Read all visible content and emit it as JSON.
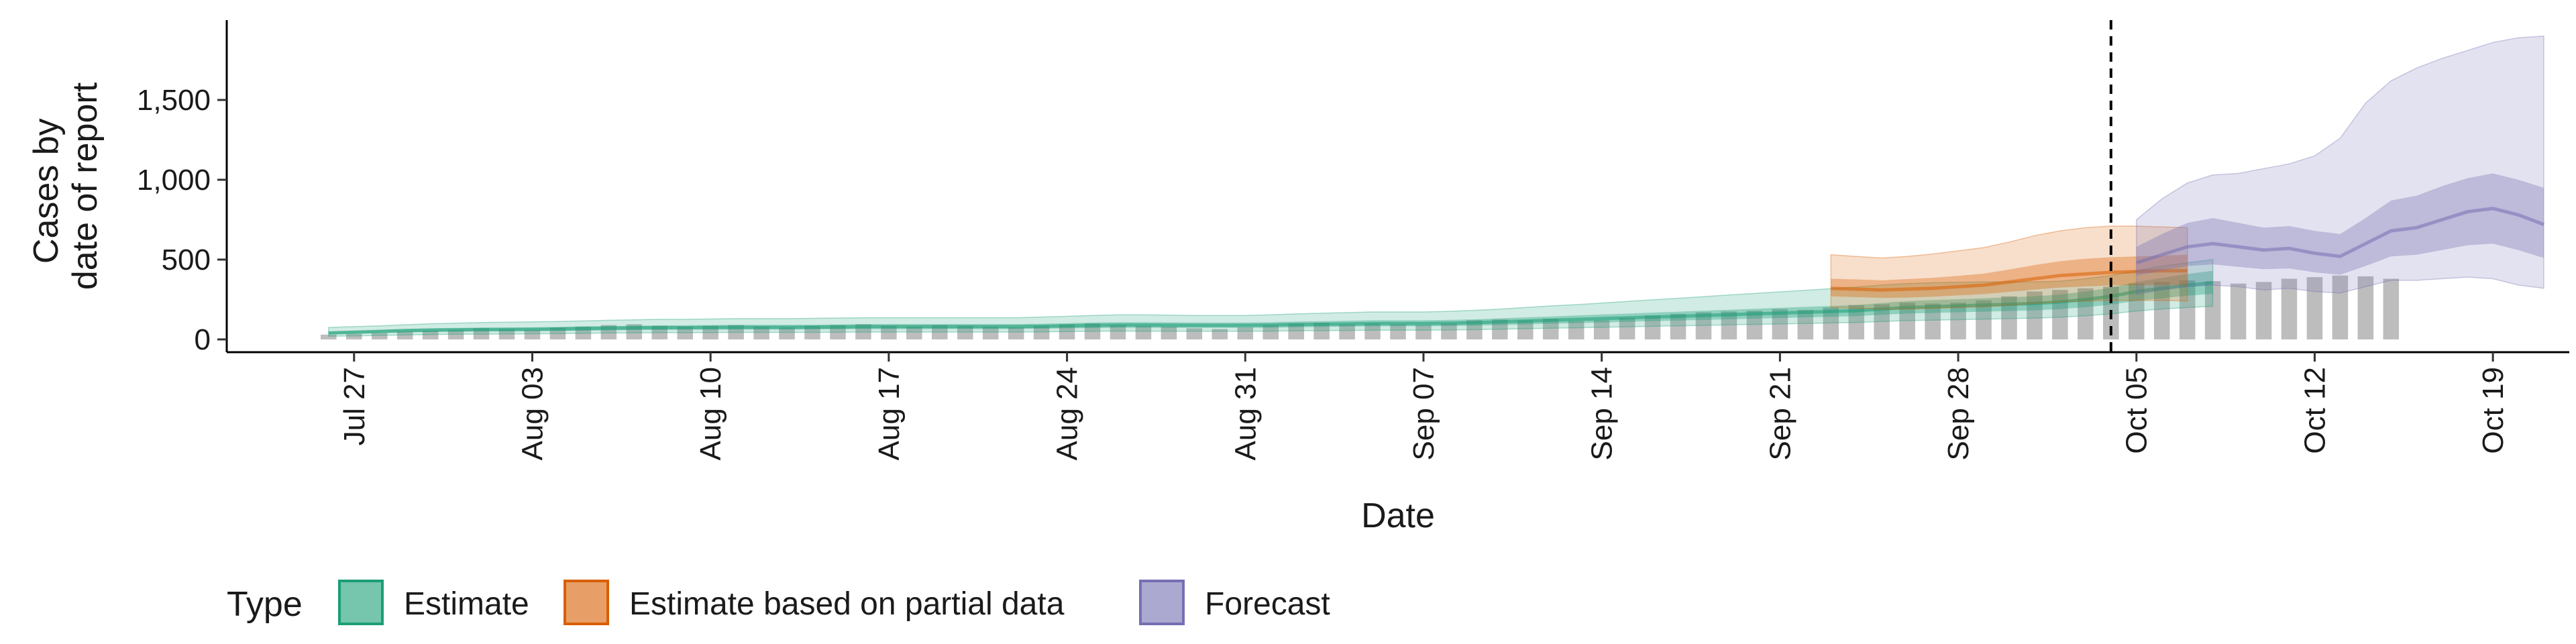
{
  "chart_data": {
    "type": "area",
    "title": "",
    "xlabel": "Date",
    "ylabel_lines": [
      "Cases by",
      "date of report"
    ],
    "x_range": [
      "2020-07-22",
      "2020-10-22"
    ],
    "ylim": [
      -80,
      2000
    ],
    "y_ticks": [
      0,
      500,
      1000,
      1500
    ],
    "y_tick_labels": [
      "0",
      "500",
      "1,000",
      "1,500"
    ],
    "x_ticks": [
      "2020-07-27",
      "2020-08-03",
      "2020-08-10",
      "2020-08-17",
      "2020-08-24",
      "2020-08-31",
      "2020-09-07",
      "2020-09-14",
      "2020-09-21",
      "2020-09-28",
      "2020-10-05",
      "2020-10-12",
      "2020-10-19"
    ],
    "x_tick_labels": [
      "Jul 27",
      "Aug 03",
      "Aug 10",
      "Aug 17",
      "Aug 24",
      "Aug 31",
      "Sep 07",
      "Sep 14",
      "Sep 21",
      "Sep 28",
      "Oct 05",
      "Oct 12",
      "Oct 19"
    ],
    "vline_date": "2020-10-04",
    "grid": false,
    "legend_position": "bottom",
    "legend_title": "Type",
    "reported_cases": {
      "start_date": "2020-07-26",
      "values": [
        30,
        35,
        40,
        50,
        55,
        60,
        70,
        65,
        60,
        75,
        80,
        90,
        95,
        85,
        80,
        85,
        90,
        80,
        75,
        85,
        90,
        95,
        85,
        80,
        90,
        85,
        80,
        75,
        85,
        95,
        100,
        90,
        85,
        80,
        70,
        65,
        75,
        90,
        100,
        105,
        95,
        100,
        95,
        90,
        100,
        120,
        125,
        120,
        130,
        115,
        120,
        135,
        150,
        160,
        170,
        175,
        180,
        190,
        185,
        200,
        215,
        220,
        230,
        225,
        230,
        245,
        270,
        300,
        310,
        320,
        330,
        350,
        360,
        370,
        365,
        350,
        360,
        380,
        390,
        400,
        395,
        380
      ]
    },
    "series": [
      {
        "name": "Estimate",
        "color": "#1b9e77",
        "start_date": "2020-07-26",
        "median": [
          40,
          45,
          50,
          55,
          58,
          60,
          62,
          62,
          63,
          65,
          68,
          70,
          72,
          74,
          74,
          75,
          76,
          76,
          76,
          77,
          78,
          80,
          80,
          80,
          80,
          80,
          80,
          80,
          82,
          85,
          88,
          90,
          90,
          89,
          88,
          88,
          88,
          90,
          93,
          95,
          97,
          100,
          100,
          100,
          102,
          105,
          110,
          115,
          120,
          125,
          130,
          135,
          140,
          145,
          150,
          155,
          160,
          165,
          170,
          175,
          180,
          190,
          200,
          205,
          210,
          215,
          220,
          225,
          235,
          250,
          270,
          300,
          320,
          340,
          355
        ],
        "inner_lower": [
          32,
          36,
          40,
          44,
          47,
          49,
          50,
          51,
          52,
          53,
          55,
          57,
          59,
          60,
          61,
          61,
          62,
          62,
          62,
          63,
          64,
          65,
          65,
          65,
          65,
          65,
          65,
          65,
          67,
          69,
          71,
          73,
          73,
          72,
          72,
          72,
          72,
          73,
          76,
          78,
          80,
          82,
          82,
          82,
          84,
          86,
          90,
          94,
          98,
          102,
          106,
          110,
          114,
          118,
          122,
          126,
          130,
          134,
          138,
          142,
          146,
          154,
          162,
          166,
          170,
          174,
          178,
          182,
          190,
          202,
          218,
          242,
          258,
          274,
          285
        ],
        "inner_upper": [
          49,
          55,
          60,
          66,
          70,
          72,
          74,
          75,
          76,
          78,
          82,
          84,
          86,
          88,
          88,
          90,
          91,
          91,
          91,
          92,
          94,
          96,
          96,
          96,
          96,
          96,
          96,
          96,
          98,
          102,
          106,
          108,
          108,
          107,
          106,
          106,
          106,
          108,
          112,
          114,
          117,
          120,
          120,
          120,
          122,
          126,
          132,
          138,
          144,
          150,
          156,
          162,
          168,
          174,
          180,
          186,
          192,
          198,
          204,
          210,
          216,
          228,
          240,
          246,
          252,
          258,
          264,
          270,
          282,
          300,
          324,
          360,
          385,
          410,
          430
        ],
        "outer_lower": [
          20,
          22,
          25,
          28,
          30,
          32,
          33,
          34,
          35,
          36,
          38,
          40,
          41,
          42,
          42,
          43,
          44,
          44,
          44,
          44,
          45,
          46,
          46,
          46,
          46,
          46,
          46,
          46,
          47,
          49,
          51,
          52,
          52,
          51,
          51,
          51,
          51,
          52,
          54,
          55,
          56,
          58,
          58,
          58,
          59,
          61,
          64,
          67,
          70,
          73,
          76,
          79,
          82,
          85,
          88,
          91,
          94,
          97,
          100,
          103,
          106,
          112,
          118,
          121,
          124,
          127,
          130,
          133,
          139,
          148,
          160,
          178,
          190,
          200,
          208
        ],
        "outer_upper": [
          75,
          80,
          85,
          92,
          98,
          102,
          106,
          108,
          110,
          112,
          116,
          120,
          123,
          126,
          126,
          128,
          130,
          130,
          130,
          132,
          134,
          136,
          136,
          136,
          136,
          136,
          136,
          136,
          140,
          145,
          150,
          154,
          154,
          152,
          150,
          150,
          150,
          154,
          160,
          164,
          168,
          172,
          172,
          172,
          176,
          182,
          190,
          200,
          210,
          218,
          228,
          238,
          248,
          258,
          268,
          278,
          288,
          298,
          308,
          318,
          328,
          340,
          350,
          355,
          358,
          360,
          360,
          360,
          365,
          380,
          400,
          430,
          460,
          480,
          500
        ]
      },
      {
        "name": "Estimate based on partial data",
        "color": "#d95f02",
        "start_date": "2020-09-23",
        "median": [
          320,
          315,
          310,
          315,
          320,
          330,
          340,
          360,
          380,
          400,
          410,
          420,
          425,
          430,
          430
        ],
        "inner_lower": [
          270,
          265,
          260,
          262,
          268,
          276,
          284,
          298,
          312,
          325,
          332,
          338,
          340,
          342,
          340
        ],
        "inner_upper": [
          380,
          376,
          370,
          378,
          386,
          398,
          412,
          438,
          466,
          490,
          505,
          515,
          520,
          525,
          530
        ],
        "outer_lower": [
          200,
          195,
          190,
          190,
          195,
          200,
          205,
          215,
          225,
          235,
          240,
          245,
          245,
          245,
          240
        ],
        "outer_upper": [
          530,
          520,
          510,
          520,
          535,
          555,
          575,
          610,
          650,
          680,
          700,
          710,
          710,
          705,
          700
        ]
      },
      {
        "name": "Forecast",
        "color": "#7570b3",
        "start_date": "2020-10-05",
        "median": [
          480,
          530,
          580,
          600,
          580,
          560,
          570,
          540,
          520,
          600,
          680,
          700,
          750,
          800,
          820,
          780,
          720
        ],
        "inner_lower": [
          400,
          430,
          460,
          470,
          455,
          440,
          445,
          420,
          405,
          460,
          520,
          530,
          560,
          590,
          600,
          560,
          510
        ],
        "inner_upper": [
          580,
          660,
          730,
          760,
          730,
          700,
          710,
          680,
          660,
          760,
          870,
          900,
          960,
          1010,
          1040,
          1000,
          950
        ],
        "outer_lower": [
          280,
          310,
          330,
          340,
          330,
          310,
          320,
          300,
          290,
          330,
          370,
          370,
          380,
          390,
          380,
          340,
          320
        ],
        "outer_upper": [
          750,
          880,
          980,
          1030,
          1040,
          1070,
          1100,
          1150,
          1260,
          1480,
          1620,
          1700,
          1760,
          1810,
          1860,
          1890,
          1900
        ]
      }
    ]
  }
}
